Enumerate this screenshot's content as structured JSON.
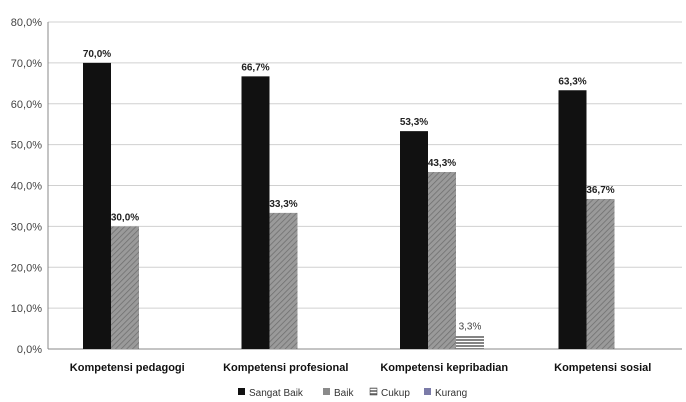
{
  "chart_data": {
    "type": "bar",
    "categories": [
      "Kompetensi pedagogi",
      "Kompetensi profesional",
      "Kompetensi kepribadian",
      "Kompetensi sosial"
    ],
    "series": [
      {
        "name": "Sangat Baik",
        "values": [
          70.0,
          66.7,
          53.3,
          63.3
        ],
        "labels": [
          "70,0%",
          "66,7%",
          "53,3%",
          "63,3%"
        ]
      },
      {
        "name": "Baik",
        "values": [
          30.0,
          33.3,
          43.3,
          36.7
        ],
        "labels": [
          "30,0%",
          "33,3%",
          "43,3%",
          "36,7%"
        ]
      },
      {
        "name": "Cukup",
        "values": [
          0,
          0,
          3.3,
          0
        ],
        "labels": [
          "",
          "",
          "3,3%",
          ""
        ]
      },
      {
        "name": "Kurang",
        "values": [
          0,
          0,
          0,
          0
        ],
        "labels": [
          "",
          "",
          "",
          ""
        ]
      }
    ],
    "yticks": [
      "0,0%",
      "10,0%",
      "20,0%",
      "30,0%",
      "40,0%",
      "50,0%",
      "60,0%",
      "70,0%",
      "80,0%"
    ],
    "ylim": [
      0,
      80
    ],
    "grid": true,
    "legend_position": "bottom",
    "colors": {
      "Sangat Baik": "#111111",
      "Baik": "#8a8a8a",
      "Cukup": "#555555",
      "Kurang": "#7b7ba8"
    }
  }
}
